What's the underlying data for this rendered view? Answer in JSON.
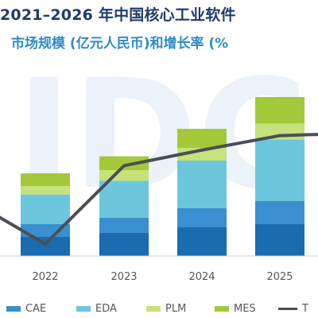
{
  "title": "2021–2026 年中国核心工业软件",
  "subtitle": "市场规模 (亿元人民币)和增长率 (%",
  "watermark": "IDC",
  "chart_data": {
    "type": "bar",
    "stacked": true,
    "categories": [
      "2022",
      "2023",
      "2024",
      "2025"
    ],
    "series": [
      {
        "name": "",
        "color": "#1a6bb0",
        "values": [
          18,
          22,
          27,
          30
        ]
      },
      {
        "name": "CAE",
        "color": "#3a8fd0",
        "values": [
          12,
          14,
          18,
          22
        ]
      },
      {
        "name": "EDA",
        "color": "#6cc7dc",
        "values": [
          28,
          35,
          45,
          58
        ]
      },
      {
        "name": "PLM",
        "color": "#c6e27a",
        "values": [
          8,
          10,
          12,
          15
        ]
      },
      {
        "name": "MES",
        "color": "#a3c93a",
        "values": [
          12,
          13,
          18,
          25
        ]
      }
    ],
    "line": {
      "name": "T",
      "color": "#4a4f57",
      "x": [
        "2021",
        "2022",
        "2023",
        "2024",
        "2025",
        "2026"
      ],
      "values": [
        48,
        10,
        75,
        88,
        100,
        102
      ]
    },
    "ylim": [
      0,
      180
    ],
    "line_ylim": [
      0,
      140
    ],
    "legend_placement": "bottom",
    "grid": false
  }
}
